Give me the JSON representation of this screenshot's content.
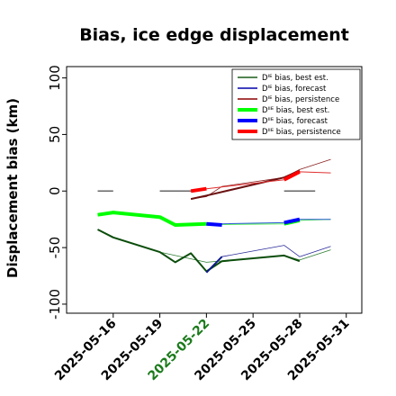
{
  "chart_data": {
    "type": "line",
    "title": "Bias, ice edge displacement",
    "ylabel": "Displacement bias (km)",
    "xlabel": "",
    "ylim": [
      -108,
      110
    ],
    "xlim": [
      "2025-05-13",
      "2025-06-01"
    ],
    "grid": false,
    "legend_position": "top-right",
    "y_ticks": [
      100,
      50,
      0,
      -50,
      -100
    ],
    "x_ticks": [
      {
        "date": "2025-05-16",
        "label": "2025-05-16",
        "color": "#000000"
      },
      {
        "date": "2025-05-19",
        "label": "2025-05-19",
        "color": "#000000"
      },
      {
        "date": "2025-05-22",
        "label": "2025-05-22",
        "color": "#1a7a1a"
      },
      {
        "date": "2025-05-25",
        "label": "2025-05-25",
        "color": "#000000"
      },
      {
        "date": "2025-05-28",
        "label": "2025-05-28",
        "color": "#000000"
      },
      {
        "date": "2025-05-31",
        "label": "2025-05-31",
        "color": "#000000"
      }
    ],
    "legend": [
      {
        "label": "Dᴵᴱ bias, best est.",
        "color": "#1a5e1a",
        "width": 1.5
      },
      {
        "label": "Dᴵᴱ bias, forecast",
        "color": "#0000aa",
        "width": 1.5
      },
      {
        "label": "Dᴵᴱ bias, persistence",
        "color": "#8b0000",
        "width": 1.5
      },
      {
        "label": "Dᴵᴵᴱ bias, best est.",
        "color": "#00ff00",
        "width": 4
      },
      {
        "label": "Dᴵᴵᴱ bias, forecast",
        "color": "#0000ff",
        "width": 4
      },
      {
        "label": "Dᴵᴵᴱ bias, persistence",
        "color": "#ff0000",
        "width": 4
      }
    ],
    "series": [
      {
        "name": "DIE best est thin",
        "color": "#2e7d32",
        "width": 0.8,
        "x": [
          "2025-05-16",
          "2025-05-19",
          "2025-05-22",
          "2025-05-27",
          "2025-05-28",
          "2025-05-30"
        ],
        "y": [
          -41,
          -54,
          -63,
          -57,
          -61,
          -52
        ]
      },
      {
        "name": "DIE forecast thin",
        "color": "#2a2a9a",
        "width": 0.8,
        "x": [
          "2025-05-22",
          "2025-05-23",
          "2025-05-27",
          "2025-05-28",
          "2025-05-30"
        ],
        "y": [
          -72,
          -58,
          -48,
          -58,
          -49
        ]
      },
      {
        "name": "DIE persistence thin",
        "color": "#8b2020",
        "width": 0.8,
        "x": [
          "2025-05-21",
          "2025-05-22",
          "2025-05-23",
          "2025-05-27",
          "2025-05-28",
          "2025-05-30"
        ],
        "y": [
          -7,
          -5,
          4,
          12,
          19,
          28
        ]
      },
      {
        "name": "DIE best est",
        "color": "#0b4d0b",
        "width": 2,
        "x": [
          "2025-05-15",
          "2025-05-16",
          "2025-05-19",
          "2025-05-20",
          "2025-05-21",
          "2025-05-22",
          "2025-05-23",
          "2025-05-27",
          "2025-05-28"
        ],
        "y": [
          -34,
          -41,
          -54,
          -63,
          -55,
          -71,
          -62,
          -57,
          -62
        ]
      },
      {
        "name": "DIE forecast",
        "color": "#0b1a8b",
        "width": 2,
        "x": [
          "2025-05-22",
          "2025-05-23"
        ],
        "y": [
          -72,
          -58
        ]
      },
      {
        "name": "DIE persistence",
        "color": "#6b1010",
        "width": 2,
        "x": [
          "2025-05-21",
          "2025-05-22",
          "2025-05-27",
          "2025-05-28"
        ],
        "y": [
          -7,
          -4,
          12,
          18
        ]
      },
      {
        "name": "DIIE best est thin",
        "color": "#55ee55",
        "width": 1,
        "x": [
          "2025-05-16",
          "2025-05-19",
          "2025-05-20",
          "2025-05-27",
          "2025-05-28",
          "2025-05-30"
        ],
        "y": [
          -19,
          -23,
          -30,
          -29,
          -26,
          -25
        ]
      },
      {
        "name": "DIIE forecast thin",
        "color": "#2a5ad0",
        "width": 1,
        "x": [
          "2025-05-22",
          "2025-05-23",
          "2025-05-27",
          "2025-05-28",
          "2025-05-30"
        ],
        "y": [
          -29,
          -29,
          -28,
          -25,
          -25
        ]
      },
      {
        "name": "DIIE persistence thin",
        "color": "#e03030",
        "width": 1,
        "x": [
          "2025-05-21",
          "2025-05-22",
          "2025-05-27",
          "2025-05-28",
          "2025-05-30"
        ],
        "y": [
          0,
          2,
          10,
          17,
          16
        ]
      },
      {
        "name": "DIIE best est",
        "color": "#00ff00",
        "width": 4,
        "x": [
          "2025-05-15",
          "2025-05-16",
          "2025-05-19",
          "2025-05-20",
          "2025-05-22"
        ],
        "y": [
          -21,
          -19,
          -23,
          -30,
          -29
        ]
      },
      {
        "name": "DIIE best est (late)",
        "color": "#00ff00",
        "width": 4,
        "x": [
          "2025-05-27",
          "2025-05-28"
        ],
        "y": [
          -29,
          -26
        ]
      },
      {
        "name": "DIIE forecast",
        "color": "#0000ff",
        "width": 4,
        "x": [
          "2025-05-22",
          "2025-05-23"
        ],
        "y": [
          -29,
          -30
        ]
      },
      {
        "name": "DIIE forecast (late)",
        "color": "#0000ff",
        "width": 4,
        "x": [
          "2025-05-27",
          "2025-05-28"
        ],
        "y": [
          -28,
          -25
        ]
      },
      {
        "name": "DIIE persistence",
        "color": "#ff0000",
        "width": 4,
        "x": [
          "2025-05-21",
          "2025-05-22"
        ],
        "y": [
          0,
          2
        ]
      },
      {
        "name": "DIIE persistence (late)",
        "color": "#ff0000",
        "width": 4,
        "x": [
          "2025-05-27",
          "2025-05-28"
        ],
        "y": [
          10,
          17
        ]
      }
    ],
    "zero_markers": [
      {
        "x0": "2025-05-15",
        "x1": "2025-05-16",
        "y": 0
      },
      {
        "x0": "2025-05-19",
        "x1": "2025-05-21",
        "y": 0
      },
      {
        "x0": "2025-05-27",
        "x1": "2025-05-29",
        "y": 0
      }
    ]
  }
}
